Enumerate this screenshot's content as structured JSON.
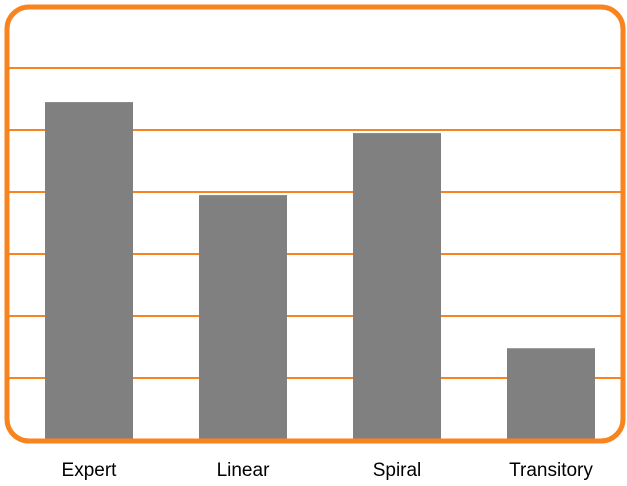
{
  "chart_data": {
    "type": "bar",
    "categories": [
      "Expert",
      "Linear",
      "Spiral",
      "Transitory"
    ],
    "values": [
      5.45,
      3.95,
      4.95,
      1.48
    ],
    "title": "",
    "xlabel": "",
    "ylabel": "",
    "ylim": [
      0,
      7
    ],
    "grid": true,
    "legend": "none"
  },
  "colors": {
    "bar": "#808080",
    "frame": "#F7841E",
    "grid": "#F7841E",
    "background": "#FFFFFF",
    "text": "#000000"
  }
}
